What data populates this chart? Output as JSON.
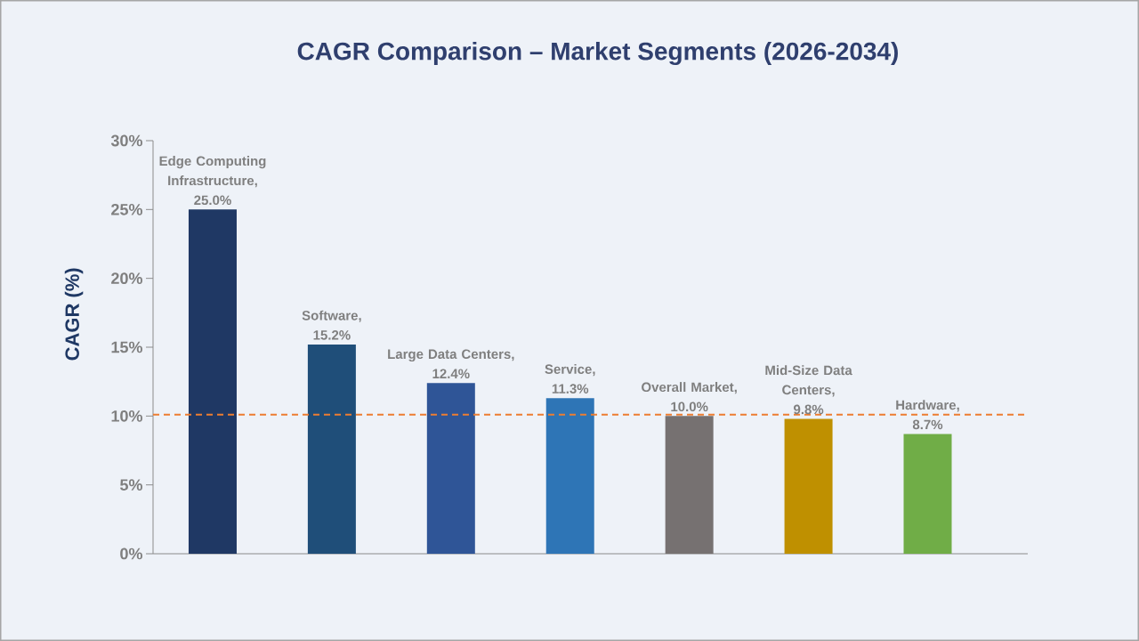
{
  "chart_data": {
    "type": "bar",
    "title": "CAGR Comparison – Market Segments (2026-2034)",
    "ylabel": "CAGR (%)",
    "categories": [
      null,
      null,
      null,
      null,
      null,
      null,
      null
    ],
    "values": [
      25.0,
      15.2,
      12.4,
      11.3,
      10.0,
      9.8,
      8.7
    ],
    "colors": [
      "#1f3864",
      "#1f4e79",
      "#2f5597",
      "#2e75b6",
      "#767171",
      "#bf9000",
      "#70ad47"
    ],
    "value_labels": [
      "Edge Computing Infrastructure, 25.0%",
      "Software, 15.2%",
      "Large Data Centers, 12.4%",
      "Service, 11.3%",
      "Overall Market, 10.0%",
      "Mid-Size Data Centers, 9.8%",
      "Hardware, 8.7%"
    ],
    "ylim": [
      0,
      30
    ],
    "yticks": [
      {
        "value": 0,
        "label": "0%"
      },
      {
        "value": 5,
        "label": "5%"
      },
      {
        "value": 10,
        "label": "10%"
      },
      {
        "value": 15,
        "label": "15%"
      },
      {
        "value": 20,
        "label": "20%"
      },
      {
        "value": 25,
        "label": "25%"
      },
      {
        "value": 30,
        "label": "30%"
      }
    ],
    "ref_lines": [
      {
        "axis": "y",
        "value": 10.1,
        "color": "#ed7d31",
        "line_style": "dashed"
      }
    ]
  }
}
